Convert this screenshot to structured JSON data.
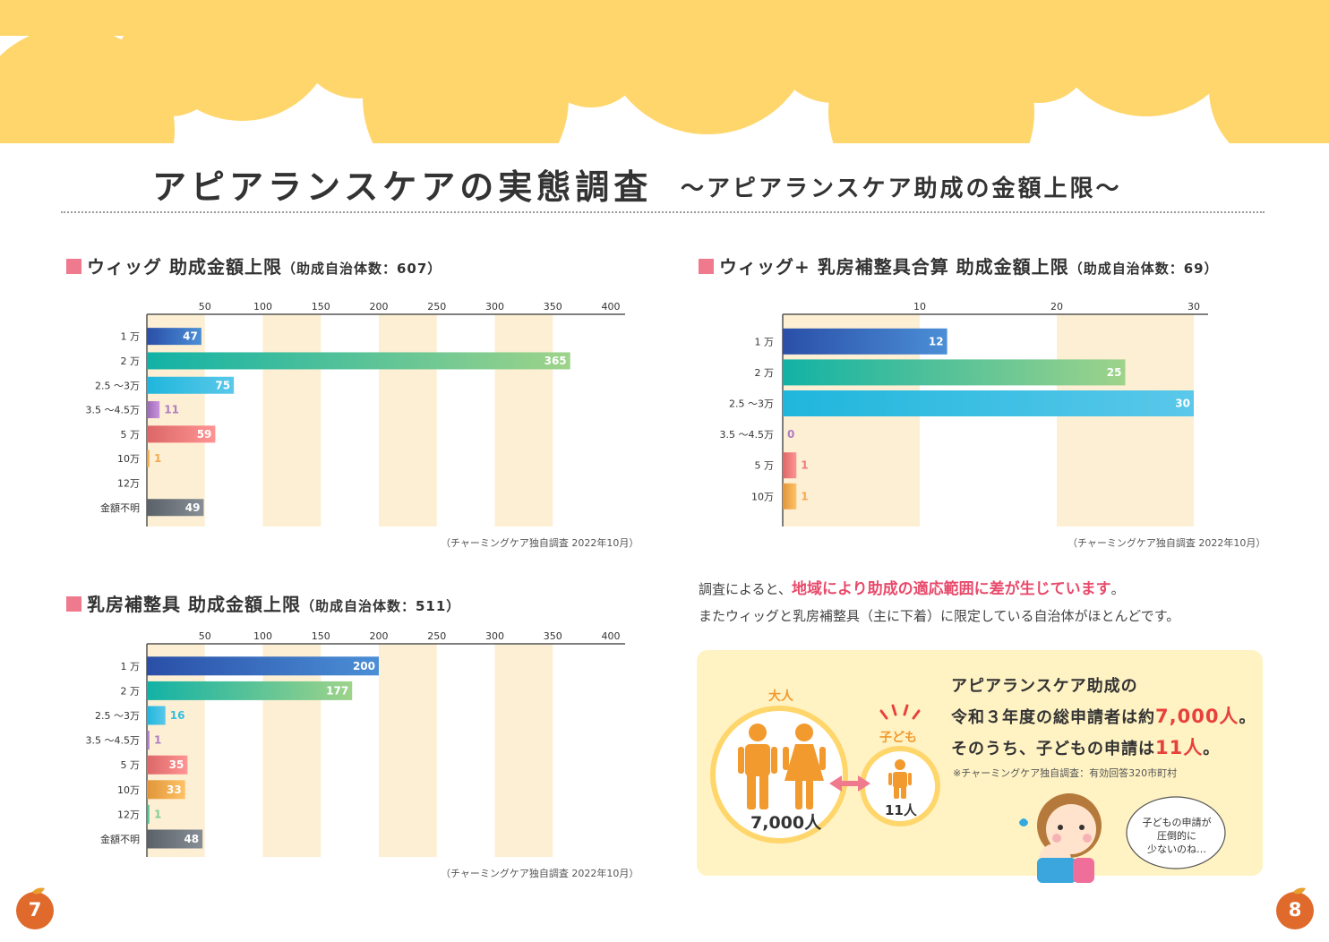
{
  "page": {
    "title": "アピアランスケアの実態調査",
    "subtitle": "〜アピアランスケア助成の金額上限〜",
    "page_left": "7",
    "page_right": "8"
  },
  "chart_data": [
    {
      "type": "bar",
      "orientation": "horizontal",
      "title": "ウィッグ 助成金額上限",
      "subtitle": "（助成自治体数：607）",
      "categories": [
        "1 万",
        "2 万",
        "2.5 〜3万",
        "3.5 〜4.5万",
        "5 万",
        "10万",
        "12万",
        "金額不明"
      ],
      "values": [
        47,
        365,
        75,
        11,
        59,
        1,
        null,
        49
      ],
      "value_labels": [
        "47",
        "365",
        "75",
        "11",
        "59",
        "1",
        "",
        "49"
      ],
      "colors": [
        "#3f6fc2",
        "#7fcf98",
        "#35bde0",
        "#b07cc6",
        "#f07b7b",
        "#f5a94e",
        "#cccccc",
        "#6f757d"
      ],
      "xticks": [
        50,
        100,
        150,
        200,
        250,
        300,
        350,
        400
      ],
      "xtick_labels": [
        "50",
        "100",
        "150",
        "200",
        "250",
        "300",
        "350",
        "400"
      ],
      "xlim": [
        0,
        400
      ],
      "source": "（チャーミングケア独自調査 2022年10月）"
    },
    {
      "type": "bar",
      "orientation": "horizontal",
      "title": "ウィッグ+ 乳房補整具合算 助成金額上限",
      "subtitle": "（助成自治体数：69）",
      "categories": [
        "1 万",
        "2 万",
        "2.5 〜3万",
        "3.5 〜4.5万",
        "5 万",
        "10万"
      ],
      "values": [
        12,
        25,
        30,
        0,
        1,
        1
      ],
      "value_labels": [
        "12",
        "25",
        "30",
        "0",
        "1",
        "1"
      ],
      "colors": [
        "#3f6fc2",
        "#7fcf98",
        "#35bde0",
        "#b07cc6",
        "#f07b7b",
        "#f5a94e"
      ],
      "xticks": [
        10,
        20,
        30
      ],
      "xtick_labels": [
        "10",
        "20",
        "30"
      ],
      "xlim": [
        0,
        30
      ],
      "source": "（チャーミングケア独自調査 2022年10月）"
    },
    {
      "type": "bar",
      "orientation": "horizontal",
      "title": "乳房補整具 助成金額上限",
      "subtitle": "（助成自治体数：511）",
      "categories": [
        "1 万",
        "2 万",
        "2.5 〜3万",
        "3.5 〜4.5万",
        "5 万",
        "10万",
        "12万",
        "金額不明"
      ],
      "values": [
        200,
        177,
        16,
        1,
        35,
        33,
        1,
        48
      ],
      "value_labels": [
        "200",
        "177",
        "16",
        "1",
        "35",
        "33",
        "1",
        "48"
      ],
      "colors": [
        "#3f6fc2",
        "#7fcf98",
        "#35bde0",
        "#b07cc6",
        "#f07b7b",
        "#f5a94e",
        "#7fcf98",
        "#6f757d"
      ],
      "xticks": [
        50,
        100,
        150,
        200,
        250,
        300,
        350,
        400
      ],
      "xtick_labels": [
        "50",
        "100",
        "150",
        "200",
        "250",
        "300",
        "350",
        "400"
      ],
      "xlim": [
        0,
        400
      ],
      "source": "（チャーミングケア独自調査 2022年10月）"
    }
  ],
  "text": {
    "line1_pre": "調査によると、",
    "line1_hl": "地域により助成の適応範囲に差が生じています",
    "line1_post": "。",
    "line2": "またウィッグと乳房補整具（主に下着）に限定している自治体がほとんどです。"
  },
  "info": {
    "adult_label": "大人",
    "adult_count": "7,000人",
    "child_label": "子ども",
    "child_count": "11人",
    "line1": "アピアランスケア助成の",
    "line2_pre": "令和３年度の総申請者は約",
    "line2_hl": "7,000人",
    "line2_post": "。",
    "line3_pre": "そのうち、子どもの申請は",
    "line3_hl": "11人",
    "line3_post": "。",
    "note": "※チャーミングケア独自調査：有効回答320市町村",
    "bubble": [
      "子どもの申請が",
      "圧倒的に",
      "少ないのね…"
    ]
  },
  "colors": {
    "cloud": "#ffd66b",
    "band": "#fdefd3",
    "accent_pink": "#ef7a8e",
    "highlight_red": "#e8413c",
    "person": "#f29a2e"
  }
}
